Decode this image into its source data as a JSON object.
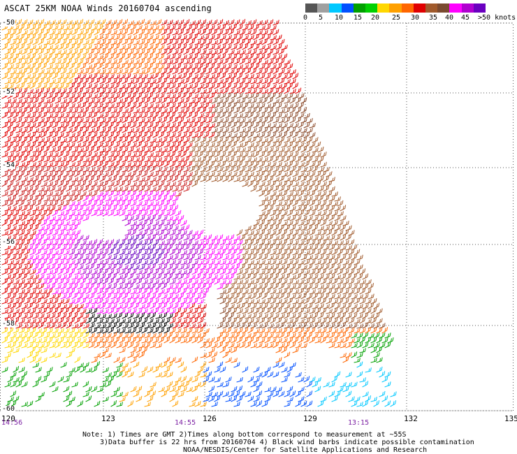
{
  "header": {
    "title": "ASCAT 25KM NOAA Winds 20160704 ascending"
  },
  "scale": {
    "colors": [
      "#555555",
      "#a0a0a0",
      "#00c8ff",
      "#0050ff",
      "#00a000",
      "#00d000",
      "#ffd700",
      "#ffa000",
      "#ff6600",
      "#e00000",
      "#a05a2c",
      "#7a4a30",
      "#ff00ff",
      "#b000d0",
      "#6a00c0"
    ],
    "labels": [
      "0",
      "5",
      "10",
      "15",
      "20",
      "25",
      "30",
      "35",
      "40",
      "45",
      ">50 knots"
    ]
  },
  "axes": {
    "lat_labels": [
      "-50",
      "-52",
      "-54",
      "-56",
      "-58",
      "-60"
    ],
    "lon_labels": [
      "120",
      "123",
      "126",
      "129",
      "132",
      "135"
    ],
    "time_labels": [
      "14:56",
      "14:55",
      "13:15"
    ]
  },
  "notes": {
    "line1": "Note: 1) Times are GMT 2)Times along bottom correspond to measurement at ~55S",
    "line2": "3)Data buffer is 22 hrs from 20160704 4) Black wind barbs indicate possible contamination",
    "line3": "NOAA/NESDIS/Center for Satellite Applications and Research"
  }
}
